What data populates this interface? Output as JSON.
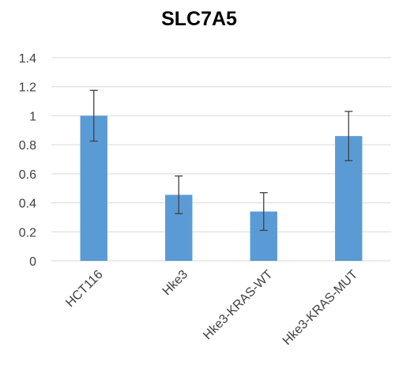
{
  "chart_data": {
    "type": "bar",
    "title": "SLC7A5",
    "xlabel": "",
    "ylabel": "",
    "categories": [
      "HCT116",
      "Hke3",
      "Hke3-KRAS-WT",
      "Hke3-KRAS-MUT"
    ],
    "series": [
      {
        "values": [
          1.0,
          0.455,
          0.34,
          0.86
        ],
        "error": [
          0.175,
          0.13,
          0.13,
          0.17
        ]
      }
    ],
    "ylim": [
      0,
      1.4
    ],
    "yticks": [
      0,
      0.2,
      0.4,
      0.6,
      0.8,
      1,
      1.2,
      1.4
    ],
    "yticklabels": [
      "0",
      "0.2",
      "0.4",
      "0.6",
      "0.8",
      "1",
      "1.2",
      "1.4"
    ],
    "grid": true,
    "legend": "none",
    "colors": {
      "bar": "#5b9bd5",
      "error_bar": "#404040",
      "gridline": "#d9d9d9",
      "axis_line": "#d9d9d9",
      "text": "#404040",
      "title": "#000000"
    }
  }
}
